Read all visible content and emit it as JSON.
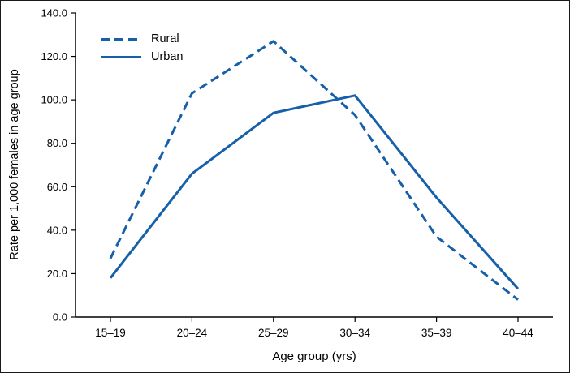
{
  "chart_data": {
    "type": "line",
    "categories": [
      "15–19",
      "20–24",
      "25–29",
      "30–34",
      "35–39",
      "40–44"
    ],
    "series": [
      {
        "name": "Rural",
        "style": "dashed",
        "values": [
          27,
          103,
          127,
          93,
          37,
          8
        ]
      },
      {
        "name": "Urban",
        "style": "solid",
        "values": [
          18,
          66,
          94,
          102,
          55,
          13
        ]
      }
    ],
    "xlabel": "Age group (yrs)",
    "ylabel": "Rate per 1,000 females in age group",
    "ylim": [
      0,
      140
    ],
    "ytick_step": 20,
    "ytick_labels": [
      "0.0",
      "20.0",
      "40.0",
      "60.0",
      "80.0",
      "100.0",
      "120.0",
      "140.0"
    ],
    "line_color": "#1560a8",
    "axis_color": "#000000",
    "legend_position": "top-left",
    "grid": false
  }
}
